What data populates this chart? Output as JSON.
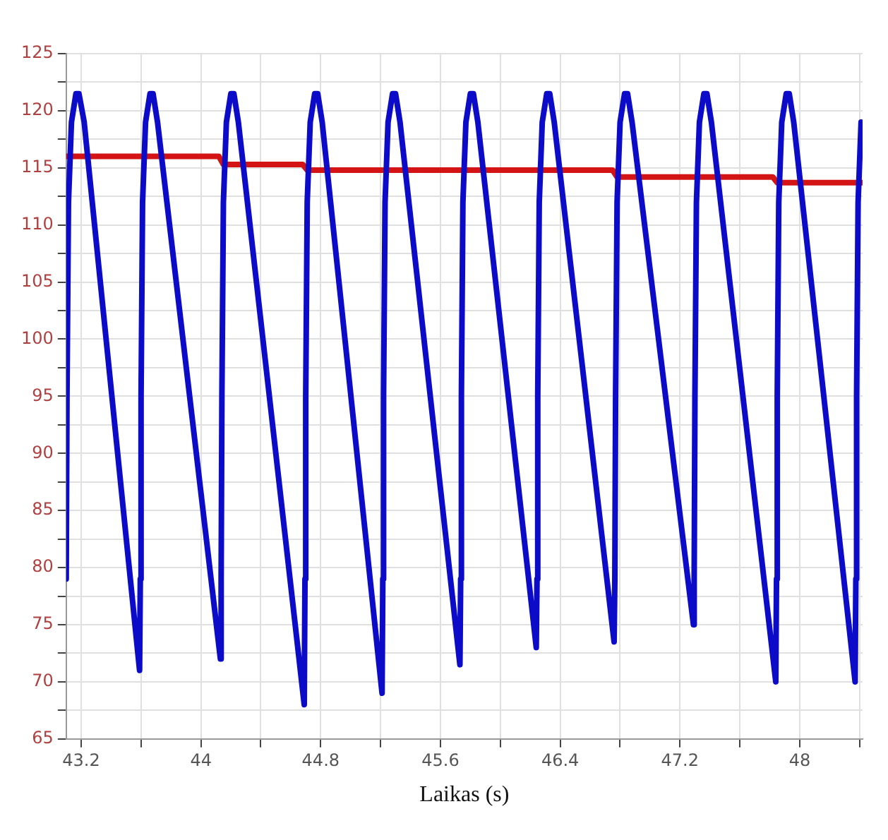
{
  "chart_data": {
    "type": "line",
    "xlabel": "Laikas (s)",
    "xlim": [
      43.1,
      48.42
    ],
    "xticks": [
      43.2,
      {
        "value": 43.6,
        "label": null
      },
      44,
      {
        "value": 44.4,
        "label": null
      },
      44.8,
      {
        "value": 45.2,
        "label": null
      },
      45.6,
      {
        "value": 46,
        "label": null
      },
      46.4,
      {
        "value": 46.8,
        "label": null
      },
      47.2,
      {
        "value": 47.6,
        "label": null
      },
      48,
      {
        "value": 48.4,
        "label": null
      }
    ],
    "ylim": [
      65,
      125
    ],
    "yticks": [
      65,
      {
        "value": 67.5,
        "label": null
      },
      70,
      {
        "value": 72.5,
        "label": null
      },
      75,
      {
        "value": 77.5,
        "label": null
      },
      80,
      {
        "value": 82.5,
        "label": null
      },
      85,
      {
        "value": 87.5,
        "label": null
      },
      90,
      {
        "value": 92.5,
        "label": null
      },
      95,
      {
        "value": 97.5,
        "label": null
      },
      100,
      {
        "value": 102.5,
        "label": null
      },
      105,
      {
        "value": 107.5,
        "label": null
      },
      110,
      {
        "value": 112.5,
        "label": null
      },
      115,
      {
        "value": 117.5,
        "label": null
      },
      120,
      {
        "value": 122.5,
        "label": null
      },
      125
    ],
    "grid": true,
    "marker": "none",
    "line_style": "solid",
    "series": [
      {
        "color": "#0c0cc8",
        "x": [
          43.1,
          43.105,
          43.115,
          43.135,
          43.165,
          43.185,
          43.22,
          43.59,
          43.595,
          43.6,
          43.61,
          43.63,
          43.66,
          43.68,
          43.71,
          44.13,
          44.135,
          44.14,
          44.15,
          44.17,
          44.2,
          44.22,
          44.25,
          44.69,
          44.695,
          44.7,
          44.71,
          44.73,
          44.76,
          44.78,
          44.81,
          45.21,
          45.215,
          45.22,
          45.23,
          45.25,
          45.28,
          45.3,
          45.33,
          45.73,
          45.735,
          45.74,
          45.75,
          45.77,
          45.8,
          45.82,
          45.85,
          46.24,
          46.245,
          46.25,
          46.26,
          46.28,
          46.31,
          46.33,
          46.36,
          46.76,
          46.765,
          46.77,
          46.78,
          46.8,
          46.83,
          46.85,
          46.88,
          47.29,
          47.295,
          47.3,
          47.31,
          47.33,
          47.36,
          47.38,
          47.41,
          47.84,
          47.845,
          47.85,
          47.86,
          47.88,
          47.91,
          47.93,
          47.96,
          48.37,
          48.375,
          48.38,
          48.39,
          48.41
        ],
        "values": [
          79,
          95,
          112,
          119,
          121.5,
          121.5,
          119,
          71,
          79,
          95,
          112,
          119,
          121.5,
          121.5,
          119,
          72,
          79,
          95,
          112,
          119,
          121.5,
          121.5,
          119,
          68,
          79,
          95,
          112,
          119,
          121.5,
          121.5,
          119,
          69,
          79,
          95,
          112,
          119,
          121.5,
          121.5,
          119,
          71.5,
          79,
          95,
          112,
          119,
          121.5,
          121.5,
          119,
          73,
          79,
          95,
          112,
          119,
          121.5,
          121.5,
          119,
          73.5,
          79,
          95,
          112,
          119,
          121.5,
          121.5,
          119,
          75,
          79,
          95,
          112,
          119,
          121.5,
          121.5,
          119,
          70,
          79,
          95,
          112,
          119,
          121.5,
          121.5,
          119,
          70,
          79,
          95,
          112,
          119
        ]
      },
      {
        "color": "#d41414",
        "x": [
          43.1,
          44.12,
          44.15,
          44.68,
          44.71,
          46.75,
          46.78,
          47.82,
          47.85,
          48.42
        ],
        "values": [
          116,
          116,
          115.3,
          115.3,
          114.8,
          114.8,
          114.2,
          114.2,
          113.7,
          113.7
        ]
      }
    ]
  }
}
